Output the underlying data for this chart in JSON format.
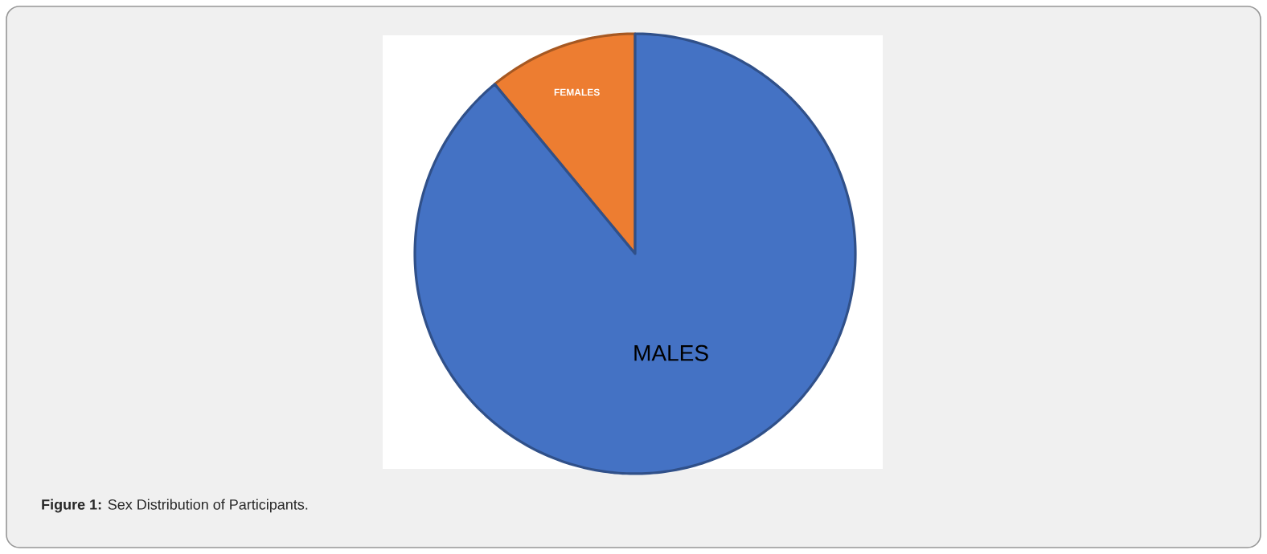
{
  "chart_data": {
    "type": "pie",
    "categories": [
      "FEMALES",
      "MALES"
    ],
    "values": [
      11,
      89
    ],
    "colors": [
      "#ed7d31",
      "#4472c4"
    ],
    "annotations": [
      "**Figure 1:** Sex Distribution of Participants."
    ]
  }
}
